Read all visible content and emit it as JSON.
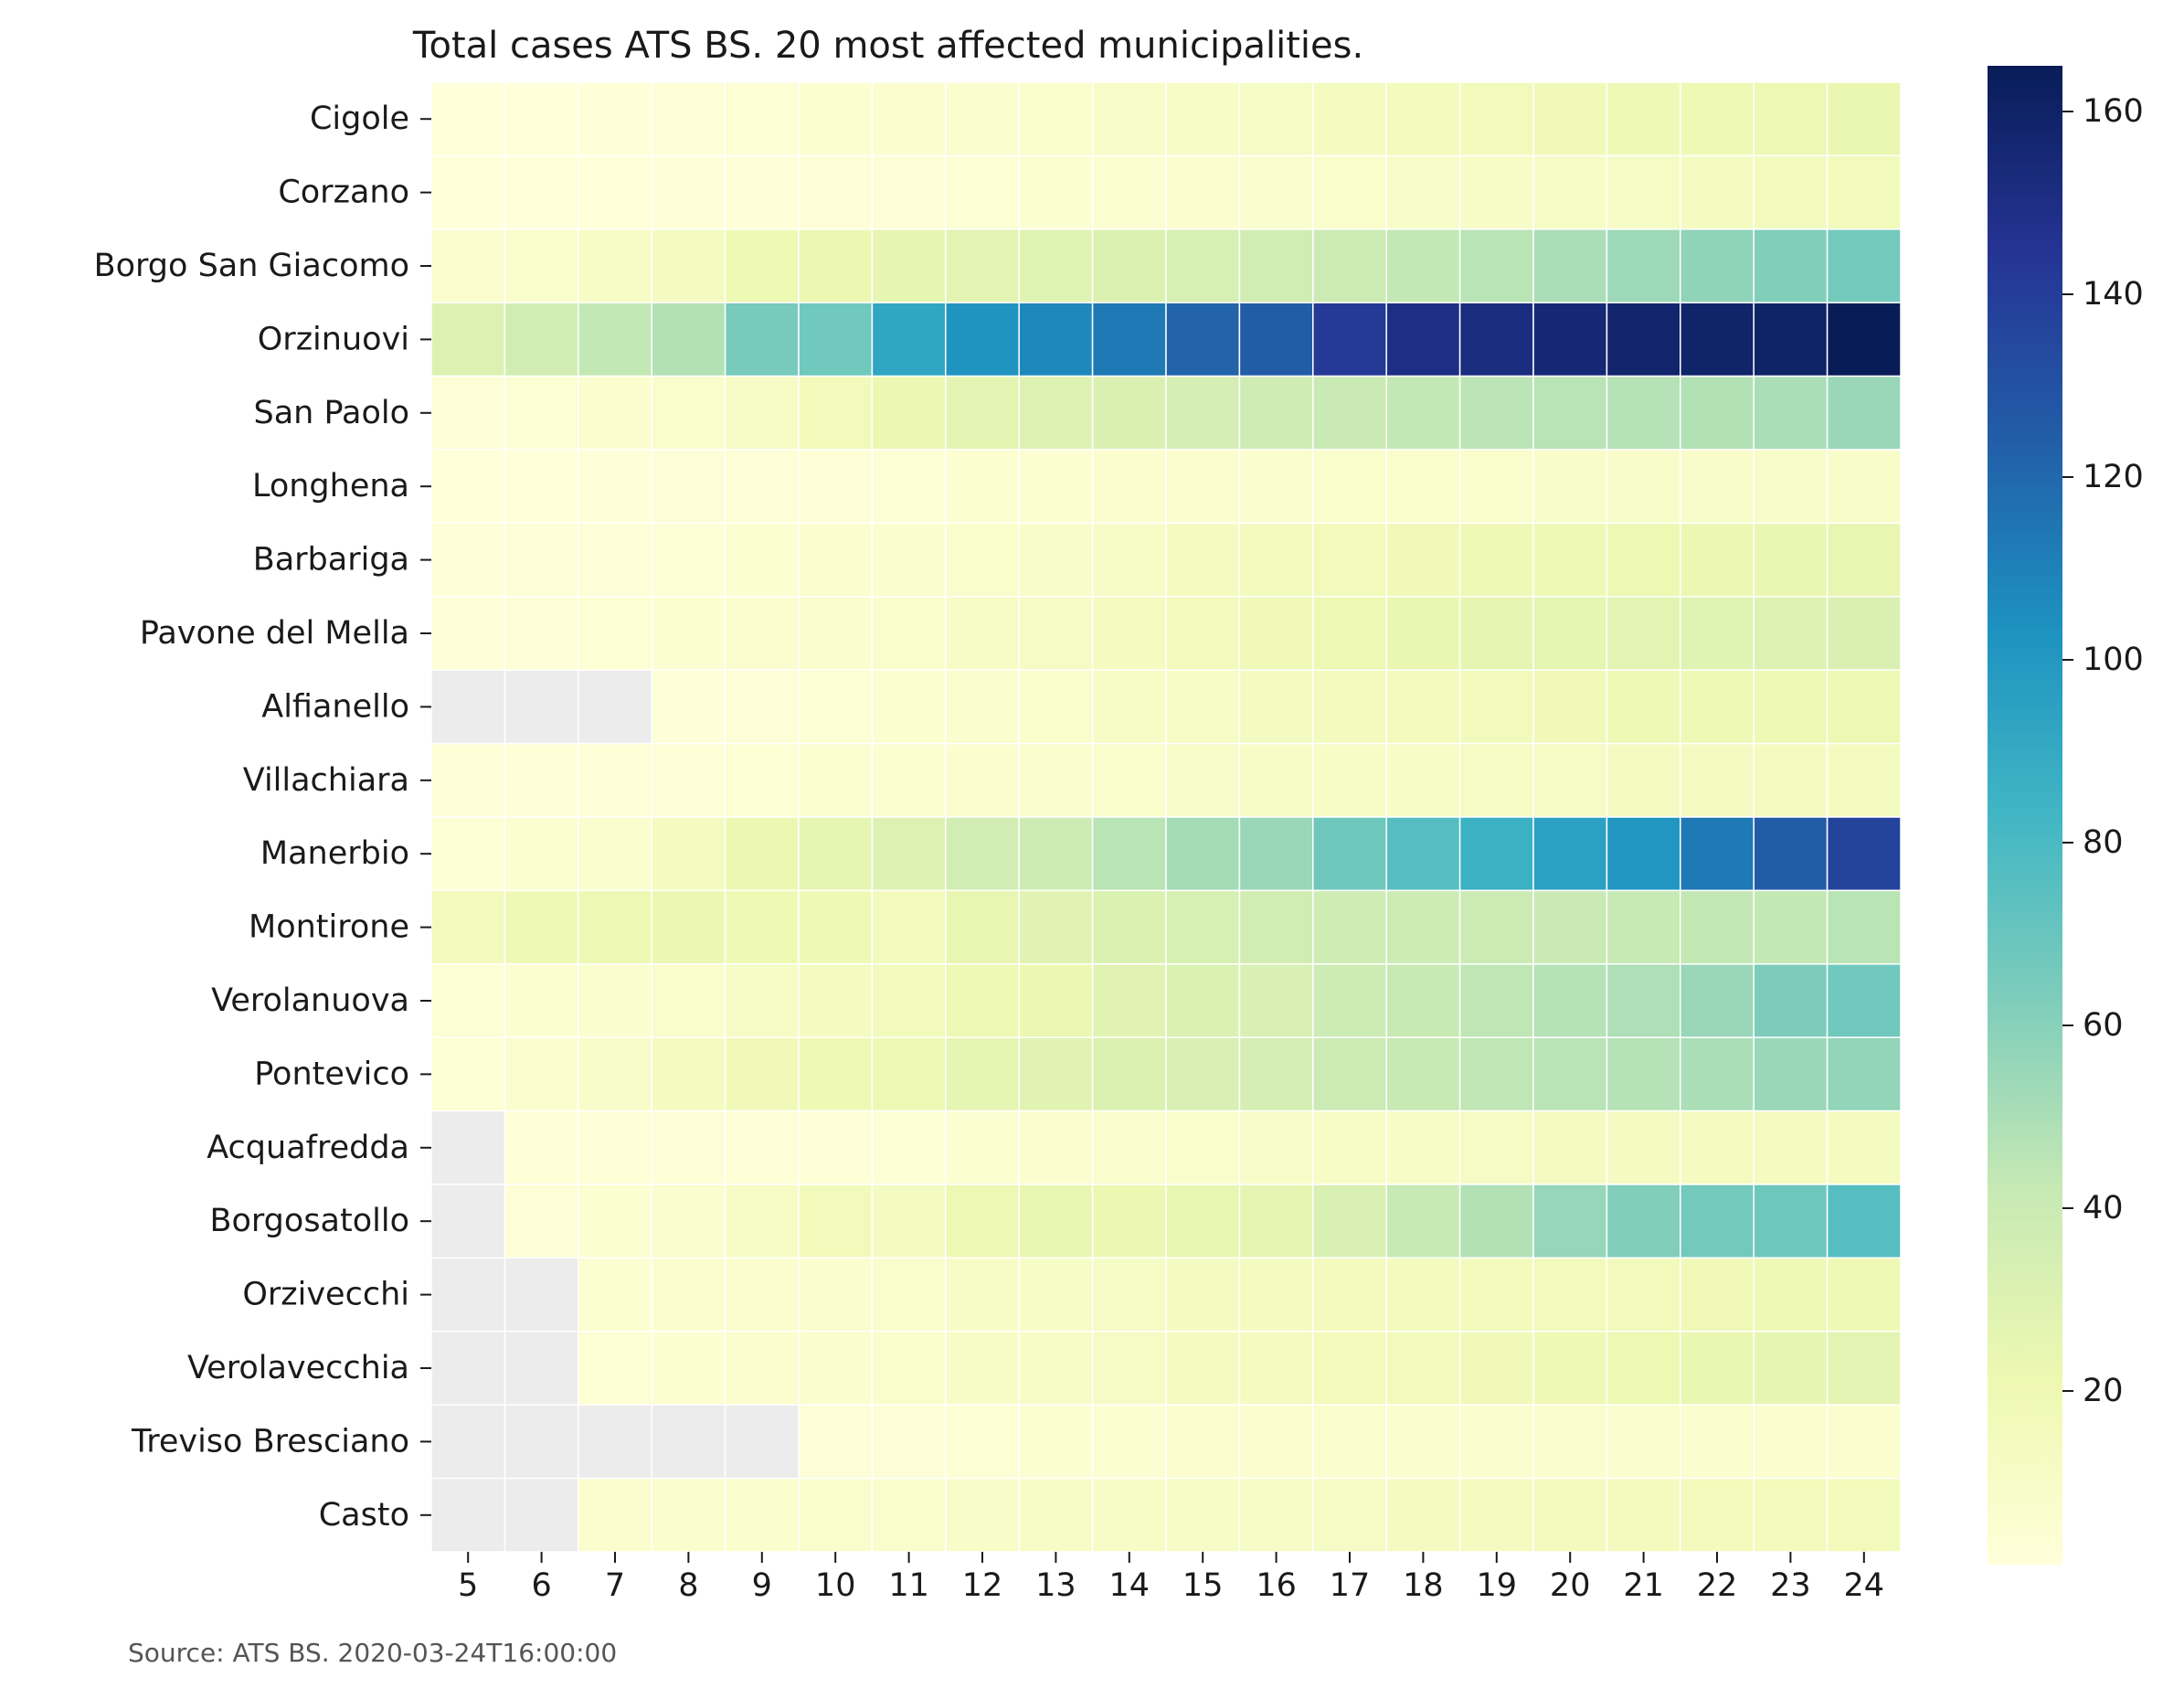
{
  "chart_data": {
    "type": "heatmap",
    "title": "Total cases ATS BS. 20 most affected municipalities.",
    "xlabel": "",
    "ylabel": "",
    "x": [
      5,
      6,
      7,
      8,
      9,
      10,
      11,
      12,
      13,
      14,
      15,
      16,
      17,
      18,
      19,
      20,
      21,
      22,
      23,
      24
    ],
    "y": [
      "Cigole",
      "Corzano",
      "Borgo San Giacomo",
      "Orzinuovi",
      "San Paolo",
      "Longhena",
      "Barbariga",
      "Pavone del Mella",
      "Alfianello",
      "Villachiara",
      "Manerbio",
      "Montirone",
      "Verolanuova",
      "Pontevico",
      "Acquafredda",
      "Borgosatollo",
      "Orzivecchi",
      "Verolavecchia",
      "Treviso Bresciano",
      "Casto"
    ],
    "values": [
      [
        1,
        1,
        2,
        3,
        4,
        5,
        6,
        7,
        8,
        9,
        11,
        12,
        14,
        16,
        17,
        18,
        19,
        20,
        21,
        23
      ],
      [
        1,
        1,
        1,
        2,
        2,
        3,
        3,
        4,
        5,
        5,
        6,
        7,
        8,
        9,
        10,
        11,
        12,
        14,
        15,
        17
      ],
      [
        6,
        8,
        11,
        14,
        20,
        22,
        25,
        27,
        29,
        31,
        34,
        36,
        40,
        43,
        46,
        50,
        54,
        58,
        62,
        66
      ],
      [
        30,
        36,
        43,
        48,
        65,
        67,
        92,
        102,
        107,
        113,
        122,
        125,
        142,
        150,
        152,
        155,
        158,
        159,
        160,
        165
      ],
      [
        3,
        4,
        6,
        8,
        12,
        17,
        22,
        27,
        30,
        32,
        35,
        38,
        41,
        43,
        45,
        46,
        47,
        48,
        50,
        55
      ],
      [
        1,
        1,
        2,
        3,
        3,
        3,
        4,
        5,
        5,
        6,
        6,
        7,
        8,
        8,
        8,
        9,
        9,
        9,
        9,
        9
      ],
      [
        2,
        3,
        3,
        4,
        5,
        6,
        7,
        8,
        9,
        10,
        14,
        15,
        17,
        18,
        19,
        20,
        21,
        22,
        23,
        24
      ],
      [
        3,
        3,
        4,
        5,
        6,
        7,
        8,
        10,
        12,
        14,
        16,
        18,
        21,
        23,
        25,
        26,
        27,
        29,
        30,
        32
      ],
      [
        null,
        null,
        null,
        2,
        3,
        4,
        5,
        7,
        8,
        10,
        11,
        13,
        15,
        16,
        17,
        18,
        19,
        19,
        20,
        21
      ],
      [
        2,
        2,
        3,
        3,
        4,
        5,
        5,
        6,
        7,
        8,
        9,
        10,
        11,
        11,
        12,
        12,
        13,
        13,
        14,
        14
      ],
      [
        4,
        5,
        7,
        14,
        22,
        26,
        30,
        36,
        39,
        46,
        52,
        55,
        68,
        76,
        86,
        95,
        101,
        113,
        125,
        137
      ],
      [
        17,
        19,
        21,
        22,
        20,
        19,
        17,
        24,
        28,
        31,
        34,
        36,
        38,
        39,
        40,
        41,
        42,
        43,
        43,
        46
      ],
      [
        4,
        5,
        7,
        8,
        12,
        14,
        16,
        20,
        22,
        28,
        31,
        33,
        39,
        42,
        44,
        47,
        49,
        55,
        63,
        67
      ],
      [
        4,
        6,
        9,
        14,
        18,
        19,
        21,
        26,
        28,
        31,
        33,
        35,
        40,
        42,
        44,
        46,
        47,
        50,
        55,
        57
      ],
      [
        null,
        2,
        3,
        3,
        3,
        3,
        4,
        5,
        6,
        7,
        8,
        9,
        10,
        11,
        12,
        13,
        13,
        14,
        14,
        14
      ],
      [
        null,
        3,
        5,
        7,
        11,
        17,
        13,
        21,
        24,
        22,
        24,
        25,
        33,
        42,
        48,
        56,
        62,
        66,
        68,
        76
      ],
      [
        null,
        null,
        5,
        6,
        6,
        7,
        8,
        10,
        11,
        12,
        13,
        14,
        15,
        16,
        16,
        17,
        17,
        18,
        19,
        19
      ],
      [
        null,
        null,
        4,
        5,
        6,
        7,
        8,
        10,
        11,
        12,
        13,
        14,
        16,
        17,
        18,
        20,
        21,
        23,
        25,
        27
      ],
      [
        null,
        null,
        null,
        null,
        null,
        3,
        3,
        4,
        5,
        5,
        6,
        6,
        7,
        7,
        7,
        7,
        7,
        7,
        6,
        6
      ],
      [
        null,
        null,
        6,
        7,
        7,
        8,
        8,
        9,
        10,
        10,
        11,
        11,
        12,
        13,
        14,
        15,
        15,
        16,
        16,
        17
      ]
    ],
    "colorbar_ticks": [
      20,
      40,
      60,
      80,
      100,
      120,
      140,
      160
    ],
    "vmin": 1,
    "vmax": 165,
    "colormap": "YlGnBu",
    "missing_color": "#ececec",
    "grid": false,
    "note": "Source: ATS BS. 2020-03-24T16:00:00"
  }
}
